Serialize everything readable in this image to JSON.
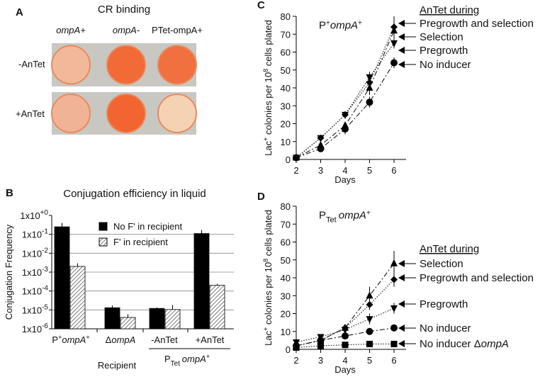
{
  "panel_a": {
    "letter": "A",
    "title": "CR binding",
    "columns": [
      "ompA+",
      "ompA-",
      "PTet-ompA+"
    ],
    "rows": [
      "-AnTet",
      "+AnTet"
    ],
    "colony_colors": [
      [
        "#f2b89a",
        "#f26a35",
        "#f07040"
      ],
      [
        "#f0b396",
        "#f26530",
        "#f6d2b4"
      ]
    ],
    "plate_bg": "#c9c7c2"
  },
  "chart_data": [
    {
      "type": "bar",
      "letter": "B",
      "title": "Conjugation efficiency in liquid",
      "ylabel": "Conjugation Frequency",
      "xlabel": "Recipient",
      "yscale": "log",
      "ylim": [
        1e-06,
        1
      ],
      "yticks": [
        "1x10+0",
        "1x10-1",
        "1x10-2",
        "1x10-3",
        "1x10-4",
        "1x10-5",
        "1x10-6"
      ],
      "categories": [
        "P+ompA+",
        "ΔompA",
        "-AnTet",
        "+AnTet"
      ],
      "group_label": "PTet ompA+",
      "legend_position": "top-center",
      "series": [
        {
          "name": "No F' in recipient",
          "values": [
            0.25,
            1.3e-05,
            1.2e-05,
            0.11
          ],
          "errors_hi": [
            0.4,
            1.7e-05,
            1.35e-05,
            0.17
          ]
        },
        {
          "name": "F' in recipient",
          "values": [
            0.002,
            4e-06,
            1.05e-05,
            0.0002
          ],
          "errors_hi": [
            0.0029,
            6e-06,
            1.8e-05,
            0.00024
          ]
        }
      ]
    },
    {
      "type": "line",
      "letter": "C",
      "title": "P+ompA+",
      "xlabel": "Days",
      "ylabel": "Lac+ colonies per 10^8 cells plated",
      "x": [
        2,
        3,
        4,
        5,
        6
      ],
      "xlim": [
        2,
        6.5
      ],
      "ylim": [
        0,
        80
      ],
      "yticks": [
        0,
        10,
        20,
        30,
        40,
        50,
        60,
        70,
        80
      ],
      "legend_title": "AnTet during",
      "series": [
        {
          "name": "Pregrowth and selection",
          "marker": "diamond",
          "values": [
            1,
            12,
            25,
            43,
            74
          ],
          "err": [
            0,
            1,
            2,
            3,
            6
          ]
        },
        {
          "name": "Selection",
          "marker": "triangle-up",
          "values": [
            1,
            8,
            19,
            40,
            72
          ],
          "err": [
            0,
            1,
            2,
            4,
            8
          ]
        },
        {
          "name": "Pregrowth",
          "marker": "triangle-down",
          "values": [
            1,
            12,
            25,
            46,
            65
          ],
          "err": [
            0,
            1,
            2,
            3,
            3
          ]
        },
        {
          "name": "No inducer",
          "marker": "circle",
          "values": [
            1,
            6,
            17,
            32,
            54
          ],
          "err": [
            0,
            1,
            3,
            3,
            3
          ]
        }
      ]
    },
    {
      "type": "line",
      "letter": "D",
      "title": "PTet ompA+",
      "xlabel": "Days",
      "ylabel": "Lac+ colonies per 10^8 cells plated",
      "x": [
        2,
        3,
        4,
        5,
        6
      ],
      "xlim": [
        2,
        6.5
      ],
      "ylim": [
        0,
        80
      ],
      "yticks": [
        0,
        10,
        20,
        30,
        40,
        50,
        60,
        70,
        80
      ],
      "legend_title": "AnTet during",
      "series": [
        {
          "name": "Selection",
          "marker": "triangle-up",
          "values": [
            2,
            5,
            12,
            30,
            48
          ],
          "err": [
            1,
            1,
            2,
            5,
            7
          ]
        },
        {
          "name": "Pregrowth and selection",
          "marker": "diamond",
          "values": [
            2,
            5,
            12,
            25,
            39
          ],
          "err": [
            1,
            1,
            2,
            3,
            4
          ]
        },
        {
          "name": "Pregrowth",
          "marker": "triangle-down",
          "values": [
            4,
            7,
            11,
            17,
            23
          ],
          "err": [
            1,
            1,
            2,
            3,
            3
          ]
        },
        {
          "name": "No inducer",
          "marker": "circle",
          "values": [
            2,
            5,
            7.5,
            10,
            12
          ],
          "err": [
            1,
            1,
            1,
            2,
            2
          ]
        },
        {
          "name": "No inducer ΔompA",
          "marker": "square",
          "values": [
            1,
            2,
            2.5,
            3,
            3
          ],
          "err": [
            0,
            0,
            0,
            0,
            0
          ]
        }
      ]
    }
  ]
}
